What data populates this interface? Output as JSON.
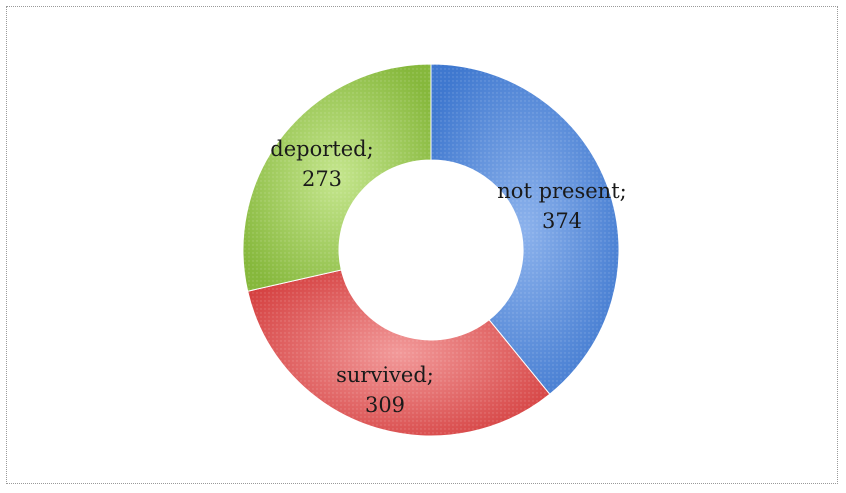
{
  "chart_data": {
    "type": "pie",
    "variant": "donut",
    "start": "top, clockwise",
    "slices": [
      {
        "name": "not present",
        "value": 374,
        "label": "not present;",
        "value_label": "374",
        "color": "#5b8fd9"
      },
      {
        "name": "survived",
        "value": 309,
        "label": "survived;",
        "value_label": "309",
        "color": "#e06262"
      },
      {
        "name": "deported",
        "value": 273,
        "label": "deported;",
        "value_label": "273",
        "color": "#a3cf58"
      }
    ],
    "legend": "none"
  }
}
